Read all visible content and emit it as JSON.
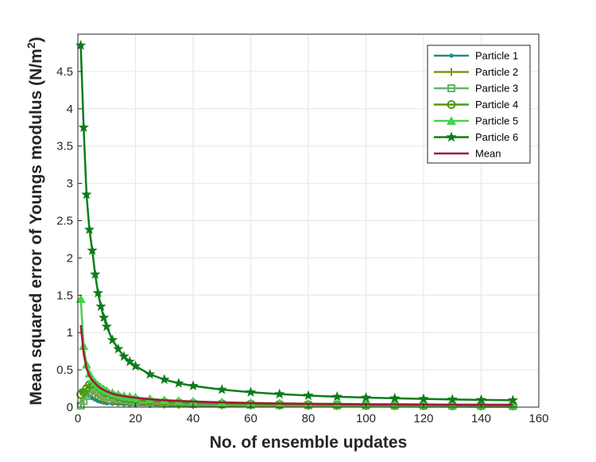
{
  "chart_data": {
    "type": "line",
    "title": "",
    "xlabel": "No. of ensemble updates",
    "ylabel": "Mean squared error of Youngs modulus (N/m",
    "ylabel_superscript": "2",
    "ylabel_suffix": ")",
    "xlim": [
      0,
      160
    ],
    "ylim": [
      0,
      5
    ],
    "xticks": [
      0,
      20,
      40,
      60,
      80,
      100,
      120,
      140,
      160
    ],
    "yticks": [
      0,
      0.5,
      1,
      1.5,
      2,
      2.5,
      3,
      3.5,
      4,
      4.5
    ],
    "ytick_labels": [
      "0",
      "0.5",
      "1",
      "1.5",
      "2",
      "2.5",
      "3",
      "3.5",
      "4",
      "4.5"
    ],
    "grid": true,
    "legend_position": "top-right",
    "x": [
      1,
      2,
      3,
      4,
      5,
      6,
      7,
      8,
      9,
      10,
      12,
      14,
      16,
      18,
      20,
      25,
      30,
      35,
      40,
      50,
      60,
      70,
      80,
      90,
      100,
      110,
      120,
      130,
      140,
      151
    ],
    "series": [
      {
        "name": "Particle 1",
        "color": "#1f8f7a",
        "marker": "dot",
        "values": [
          0.22,
          0.2,
          0.18,
          0.15,
          0.12,
          0.1,
          0.08,
          0.07,
          0.06,
          0.05,
          0.045,
          0.04,
          0.035,
          0.03,
          0.028,
          0.024,
          0.02,
          0.018,
          0.016,
          0.014,
          0.012,
          0.011,
          0.01,
          0.009,
          0.008,
          0.008,
          0.007,
          0.007,
          0.006,
          0.006
        ]
      },
      {
        "name": "Particle 2",
        "color": "#8a8f1a",
        "marker": "plus",
        "values": [
          0.05,
          0.12,
          0.2,
          0.22,
          0.2,
          0.18,
          0.15,
          0.13,
          0.11,
          0.1,
          0.08,
          0.07,
          0.06,
          0.055,
          0.05,
          0.04,
          0.035,
          0.03,
          0.027,
          0.023,
          0.02,
          0.018,
          0.016,
          0.015,
          0.014,
          0.013,
          0.012,
          0.011,
          0.01,
          0.01
        ]
      },
      {
        "name": "Particle 3",
        "color": "#66b566",
        "marker": "square",
        "values": [
          0.02,
          0.08,
          0.15,
          0.25,
          0.27,
          0.25,
          0.22,
          0.19,
          0.17,
          0.15,
          0.13,
          0.11,
          0.1,
          0.09,
          0.08,
          0.065,
          0.055,
          0.048,
          0.042,
          0.035,
          0.03,
          0.027,
          0.024,
          0.022,
          0.02,
          0.019,
          0.018,
          0.017,
          0.016,
          0.015
        ]
      },
      {
        "name": "Particle 4",
        "color": "#4f9a12",
        "marker": "circle",
        "values": [
          0.17,
          0.2,
          0.25,
          0.3,
          0.32,
          0.3,
          0.27,
          0.24,
          0.21,
          0.19,
          0.16,
          0.14,
          0.12,
          0.11,
          0.1,
          0.08,
          0.068,
          0.06,
          0.053,
          0.045,
          0.04,
          0.036,
          0.033,
          0.031,
          0.029,
          0.027,
          0.026,
          0.025,
          0.024,
          0.023
        ]
      },
      {
        "name": "Particle 5",
        "color": "#45d24a",
        "marker": "triangle",
        "values": [
          1.45,
          0.82,
          0.57,
          0.45,
          0.38,
          0.33,
          0.29,
          0.26,
          0.24,
          0.22,
          0.19,
          0.17,
          0.15,
          0.14,
          0.13,
          0.11,
          0.095,
          0.085,
          0.077,
          0.065,
          0.057,
          0.051,
          0.047,
          0.044,
          0.041,
          0.039,
          0.037,
          0.035,
          0.034,
          0.033
        ]
      },
      {
        "name": "Particle 6",
        "color": "#0c7d1a",
        "marker": "star",
        "values": [
          4.85,
          3.75,
          2.85,
          2.38,
          2.1,
          1.78,
          1.53,
          1.35,
          1.2,
          1.08,
          0.9,
          0.78,
          0.68,
          0.61,
          0.55,
          0.44,
          0.37,
          0.32,
          0.285,
          0.235,
          0.2,
          0.175,
          0.155,
          0.14,
          0.128,
          0.118,
          0.11,
          0.103,
          0.097,
          0.092
        ]
      },
      {
        "name": "Mean",
        "color": "#a3173a",
        "marker": "none",
        "values": [
          1.1,
          0.72,
          0.52,
          0.42,
          0.36,
          0.32,
          0.28,
          0.25,
          0.23,
          0.21,
          0.18,
          0.16,
          0.145,
          0.135,
          0.125,
          0.105,
          0.092,
          0.082,
          0.074,
          0.062,
          0.054,
          0.048,
          0.044,
          0.041,
          0.038,
          0.036,
          0.034,
          0.032,
          0.031,
          0.03
        ]
      }
    ]
  }
}
